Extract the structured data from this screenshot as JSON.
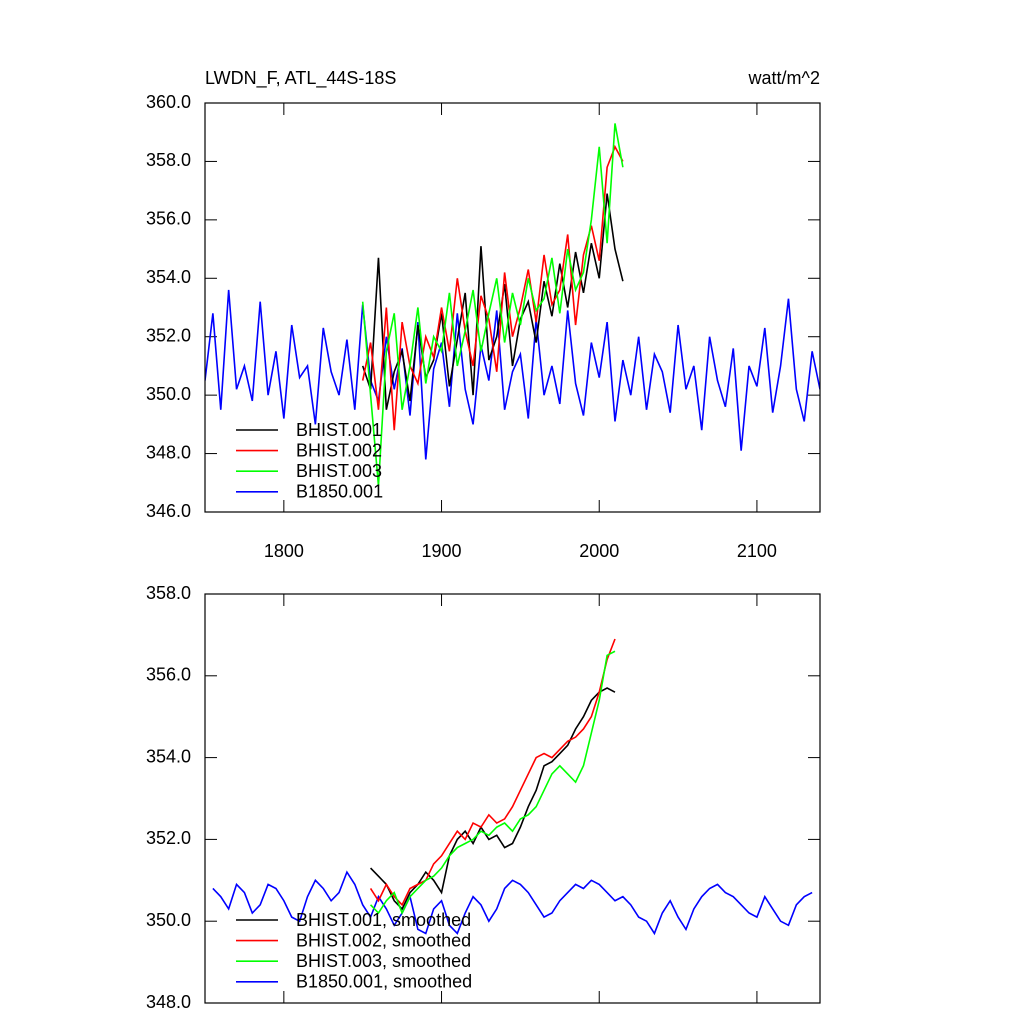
{
  "chart_data": [
    {
      "type": "line",
      "title": "LWDN_F, ATL_44S-18S",
      "units": "watt/m^2",
      "xlim": [
        1750,
        2140
      ],
      "xticks": [
        1800,
        1900,
        2000,
        2100
      ],
      "ylim": [
        346,
        360
      ],
      "yticks": [
        {
          "value": 346,
          "label": "346.0"
        },
        {
          "value": 348,
          "label": "348.0"
        },
        {
          "value": 350,
          "label": "350.0"
        },
        {
          "value": 352,
          "label": "352.0"
        },
        {
          "value": 354,
          "label": "354.0"
        },
        {
          "value": 356,
          "label": "356.0"
        },
        {
          "value": 358,
          "label": "358.0"
        },
        {
          "value": 360,
          "label": "360.0"
        }
      ],
      "series": [
        {
          "name": "B1850.001",
          "color": "#0000ff",
          "x": [
            1750,
            1755,
            1760,
            1765,
            1770,
            1775,
            1780,
            1785,
            1790,
            1795,
            1800,
            1805,
            1810,
            1815,
            1820,
            1825,
            1830,
            1835,
            1840,
            1845,
            1850,
            1855,
            1860,
            1865,
            1870,
            1875,
            1880,
            1885,
            1890,
            1895,
            1900,
            1905,
            1910,
            1915,
            1920,
            1925,
            1930,
            1935,
            1940,
            1945,
            1950,
            1955,
            1960,
            1965,
            1970,
            1975,
            1980,
            1985,
            1990,
            1995,
            2000,
            2005,
            2010,
            2015,
            2020,
            2025,
            2030,
            2035,
            2040,
            2045,
            2050,
            2055,
            2060,
            2065,
            2070,
            2075,
            2080,
            2085,
            2090,
            2095,
            2100,
            2105,
            2110,
            2115,
            2120,
            2125,
            2130,
            2135,
            2140
          ],
          "values": [
            350.5,
            352.8,
            349.5,
            353.6,
            350.2,
            351.0,
            349.8,
            353.2,
            350.0,
            351.5,
            349.2,
            352.4,
            350.6,
            351.0,
            349.0,
            352.3,
            350.8,
            350.0,
            351.9,
            349.5,
            353.1,
            350.5,
            349.8,
            352.0,
            350.2,
            351.6,
            349.3,
            352.5,
            347.8,
            350.9,
            351.8,
            349.6,
            352.8,
            350.2,
            349.0,
            351.7,
            350.5,
            352.9,
            349.5,
            350.8,
            351.4,
            349.2,
            352.6,
            350.0,
            351.0,
            349.7,
            352.9,
            350.4,
            349.3,
            351.8,
            350.6,
            352.5,
            349.1,
            351.2,
            350.0,
            352.0,
            349.5,
            351.4,
            350.8,
            349.4,
            352.4,
            350.2,
            351.0,
            348.8,
            352.0,
            350.5,
            349.6,
            351.6,
            348.1,
            351.0,
            350.3,
            352.3,
            349.4,
            351.0,
            353.3,
            350.2,
            349.1,
            351.5,
            350.2
          ]
        },
        {
          "name": "BHIST.001",
          "color": "#000000",
          "x": [
            1850,
            1855,
            1860,
            1865,
            1870,
            1875,
            1880,
            1885,
            1890,
            1895,
            1900,
            1905,
            1910,
            1915,
            1920,
            1925,
            1930,
            1935,
            1940,
            1945,
            1950,
            1955,
            1960,
            1965,
            1970,
            1975,
            1980,
            1985,
            1990,
            1995,
            2000,
            2005,
            2010,
            2015
          ],
          "values": [
            351.0,
            350.2,
            354.7,
            349.5,
            350.8,
            351.5,
            349.8,
            352.4,
            350.6,
            351.2,
            352.8,
            350.3,
            351.9,
            353.5,
            350.0,
            355.1,
            351.2,
            352.0,
            353.8,
            351.0,
            352.6,
            353.2,
            351.8,
            353.9,
            352.7,
            354.5,
            353.0,
            354.9,
            353.5,
            355.2,
            354.0,
            356.9,
            355.0,
            353.9
          ]
        },
        {
          "name": "BHIST.002",
          "color": "#ff0000",
          "x": [
            1850,
            1855,
            1860,
            1865,
            1870,
            1875,
            1880,
            1885,
            1890,
            1895,
            1900,
            1905,
            1910,
            1915,
            1920,
            1925,
            1930,
            1935,
            1940,
            1945,
            1950,
            1955,
            1960,
            1965,
            1970,
            1975,
            1980,
            1985,
            1990,
            1995,
            2000,
            2005,
            2010,
            2015
          ],
          "values": [
            350.5,
            351.8,
            349.5,
            353.0,
            348.8,
            352.5,
            351.0,
            350.4,
            352.0,
            351.3,
            353.0,
            351.5,
            354.0,
            352.2,
            351.0,
            353.4,
            352.6,
            350.8,
            354.2,
            352.0,
            353.0,
            354.3,
            352.5,
            354.8,
            353.1,
            353.6,
            355.5,
            352.4,
            354.8,
            355.8,
            354.6,
            357.8,
            358.5,
            358.0
          ]
        },
        {
          "name": "BHIST.003",
          "color": "#00ff00",
          "x": [
            1850,
            1855,
            1860,
            1865,
            1870,
            1875,
            1880,
            1885,
            1890,
            1895,
            1900,
            1905,
            1910,
            1915,
            1920,
            1925,
            1930,
            1935,
            1940,
            1945,
            1950,
            1955,
            1960,
            1965,
            1970,
            1975,
            1980,
            1985,
            1990,
            1995,
            2000,
            2005,
            2010,
            2015
          ],
          "values": [
            353.2,
            350.0,
            346.9,
            351.5,
            352.8,
            349.5,
            351.0,
            353.0,
            350.4,
            352.0,
            351.5,
            353.5,
            351.0,
            352.2,
            353.6,
            351.5,
            352.8,
            354.0,
            351.8,
            353.5,
            352.4,
            354.0,
            352.9,
            353.3,
            354.7,
            352.8,
            355.0,
            353.6,
            354.2,
            356.0,
            358.5,
            355.2,
            359.3,
            357.8
          ]
        }
      ],
      "legend_order": [
        "BHIST.001",
        "BHIST.002",
        "BHIST.003",
        "B1850.001"
      ]
    },
    {
      "type": "line",
      "xlim": [
        1750,
        2140
      ],
      "xticks": [
        1800,
        1900,
        2000,
        2100
      ],
      "ylim": [
        348,
        358
      ],
      "yticks": [
        {
          "value": 348,
          "label": "348.0"
        },
        {
          "value": 350,
          "label": "350.0"
        },
        {
          "value": 352,
          "label": "352.0"
        },
        {
          "value": 354,
          "label": "354.0"
        },
        {
          "value": 356,
          "label": "356.0"
        },
        {
          "value": 358,
          "label": "358.0"
        }
      ],
      "series": [
        {
          "name": "B1850.001, smoothed",
          "color": "#0000ff",
          "x": [
            1755,
            1760,
            1765,
            1770,
            1775,
            1780,
            1785,
            1790,
            1795,
            1800,
            1805,
            1810,
            1815,
            1820,
            1825,
            1830,
            1835,
            1840,
            1845,
            1850,
            1855,
            1860,
            1865,
            1870,
            1875,
            1880,
            1885,
            1890,
            1895,
            1900,
            1905,
            1910,
            1915,
            1920,
            1925,
            1930,
            1935,
            1940,
            1945,
            1950,
            1955,
            1960,
            1965,
            1970,
            1975,
            1980,
            1985,
            1990,
            1995,
            2000,
            2005,
            2010,
            2015,
            2020,
            2025,
            2030,
            2035,
            2040,
            2045,
            2050,
            2055,
            2060,
            2065,
            2070,
            2075,
            2080,
            2085,
            2090,
            2095,
            2100,
            2105,
            2110,
            2115,
            2120,
            2125,
            2130,
            2135
          ],
          "values": [
            350.8,
            350.6,
            350.3,
            350.9,
            350.7,
            350.2,
            350.4,
            350.9,
            350.8,
            350.5,
            350.1,
            350.0,
            350.6,
            351.0,
            350.8,
            350.5,
            350.7,
            351.2,
            350.9,
            350.4,
            350.1,
            350.6,
            350.3,
            349.9,
            350.2,
            350.6,
            349.8,
            349.7,
            350.3,
            350.5,
            349.9,
            349.7,
            350.2,
            350.6,
            350.4,
            350.0,
            350.3,
            350.8,
            351.0,
            350.9,
            350.7,
            350.4,
            350.1,
            350.2,
            350.5,
            350.7,
            350.9,
            350.8,
            351.0,
            350.9,
            350.7,
            350.5,
            350.6,
            350.4,
            350.1,
            350.0,
            349.7,
            350.2,
            350.5,
            350.1,
            349.8,
            350.3,
            350.6,
            350.8,
            350.9,
            350.7,
            350.6,
            350.4,
            350.2,
            350.1,
            350.6,
            350.3,
            350.0,
            349.9,
            350.4,
            350.6,
            350.7
          ]
        },
        {
          "name": "BHIST.001, smoothed",
          "color": "#000000",
          "x": [
            1855,
            1860,
            1865,
            1870,
            1875,
            1880,
            1885,
            1890,
            1895,
            1900,
            1905,
            1910,
            1915,
            1920,
            1925,
            1930,
            1935,
            1940,
            1945,
            1950,
            1955,
            1960,
            1965,
            1970,
            1975,
            1980,
            1985,
            1990,
            1995,
            2000,
            2005,
            2010
          ],
          "values": [
            351.3,
            351.1,
            350.9,
            350.5,
            350.3,
            350.7,
            350.9,
            351.2,
            351.0,
            350.7,
            351.6,
            352.0,
            352.2,
            351.9,
            352.3,
            352.0,
            352.1,
            351.8,
            351.9,
            352.3,
            352.8,
            353.2,
            353.8,
            353.9,
            354.1,
            354.3,
            354.7,
            355.0,
            355.4,
            355.6,
            355.7,
            355.6
          ]
        },
        {
          "name": "BHIST.002, smoothed",
          "color": "#ff0000",
          "x": [
            1855,
            1860,
            1865,
            1870,
            1875,
            1880,
            1885,
            1890,
            1895,
            1900,
            1905,
            1910,
            1915,
            1920,
            1925,
            1930,
            1935,
            1940,
            1945,
            1950,
            1955,
            1960,
            1965,
            1970,
            1975,
            1980,
            1985,
            1990,
            1995,
            2000,
            2005,
            2010
          ],
          "values": [
            350.8,
            350.5,
            350.9,
            350.6,
            350.4,
            350.8,
            350.9,
            351.0,
            351.4,
            351.6,
            351.9,
            352.2,
            352.0,
            352.4,
            352.3,
            352.6,
            352.4,
            352.5,
            352.8,
            353.2,
            353.6,
            354.0,
            354.1,
            354.0,
            354.2,
            354.4,
            354.5,
            354.7,
            355.0,
            355.6,
            356.4,
            356.9
          ]
        },
        {
          "name": "BHIST.003, smoothed",
          "color": "#00ff00",
          "x": [
            1855,
            1860,
            1865,
            1870,
            1875,
            1880,
            1885,
            1890,
            1895,
            1900,
            1905,
            1910,
            1915,
            1920,
            1925,
            1930,
            1935,
            1940,
            1945,
            1950,
            1955,
            1960,
            1965,
            1970,
            1975,
            1980,
            1985,
            1990,
            1995,
            2000,
            2005,
            2010
          ],
          "values": [
            350.4,
            350.2,
            350.5,
            350.7,
            350.2,
            350.6,
            350.8,
            351.0,
            351.1,
            351.3,
            351.6,
            351.8,
            351.9,
            352.0,
            352.2,
            352.1,
            352.3,
            352.4,
            352.2,
            352.5,
            352.6,
            352.8,
            353.2,
            353.6,
            353.8,
            353.6,
            353.4,
            353.8,
            354.6,
            355.4,
            356.5,
            356.6
          ]
        }
      ],
      "legend_order": [
        "BHIST.001, smoothed",
        "BHIST.002, smoothed",
        "BHIST.003, smoothed",
        "B1850.001, smoothed"
      ]
    }
  ]
}
